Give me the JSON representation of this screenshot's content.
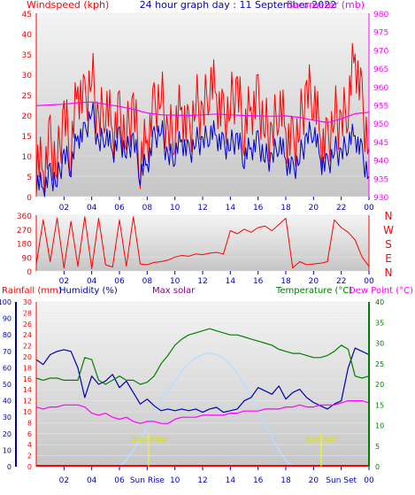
{
  "header": {
    "left": "Windspeed (kph)",
    "center": "24 hour graph day : 11 September 2022",
    "right": "Barometer (mb)"
  },
  "x_ticks": [
    "02",
    "04",
    "06",
    "08",
    "10",
    "12",
    "14",
    "16",
    "18",
    "20",
    "22",
    "00"
  ],
  "x_ticks_bottom": [
    "02",
    "04",
    "06",
    "Sun Rise",
    "10",
    "12",
    "14",
    "16",
    "18",
    "20",
    "Sun Set",
    "00"
  ],
  "compass": [
    "N",
    "W",
    "S",
    "E",
    "N"
  ],
  "bottom_header": {
    "rainfall": "Rainfall (mm)",
    "humidity": "Humidity (%)",
    "solar": "Max solar",
    "temperature": "Temperature (°C)",
    "dewpoint": "Dew Point (°C)"
  },
  "sun": {
    "rise_label": "Sun Rise",
    "set_label": "Sun Set",
    "rise_hour": 8.1,
    "set_hour": 20.55
  },
  "colors": {
    "wind": "#ff0000",
    "wind_avg": "#0000cc",
    "barometer": "#ff00ff",
    "direction": "#ff0000",
    "humidity": "#0000aa",
    "temperature": "#008000",
    "dewpoint": "#ff00ff",
    "solar": "#bbddff",
    "rain": "#ff0000",
    "sun_marker": "#ffff00"
  },
  "chart_data": [
    {
      "type": "line",
      "title": "24 hour graph day : 11 September 2022",
      "x_range_hours": [
        0,
        24
      ],
      "x_tick_labels": [
        "02",
        "04",
        "06",
        "08",
        "10",
        "12",
        "14",
        "16",
        "18",
        "20",
        "22",
        "00"
      ],
      "y_left": {
        "label": "Windspeed (kph)",
        "ticks": [
          "0",
          "5",
          "10",
          "15",
          "20",
          "25",
          "30",
          "35",
          "40",
          "45"
        ],
        "ylim": [
          0,
          45
        ]
      },
      "y_right": {
        "label": "Barometer (mb)",
        "ticks": [
          "930",
          "935",
          "940",
          "945",
          "950",
          "955",
          "960",
          "965",
          "970",
          "975",
          "980"
        ],
        "ylim": [
          930,
          980
        ]
      },
      "series": [
        {
          "name": "Windspeed (kph)",
          "axis": "left",
          "x": [
            0,
            0.5,
            1,
            1.5,
            2,
            2.5,
            3,
            3.5,
            4,
            4.5,
            5,
            5.5,
            6,
            6.5,
            7,
            7.5,
            8,
            8.5,
            9,
            9.5,
            10,
            10.5,
            11,
            11.5,
            12,
            12.5,
            13,
            13.5,
            14,
            14.5,
            15,
            15.5,
            16,
            16.5,
            17,
            17.5,
            18,
            18.5,
            19,
            19.5,
            20,
            20.5,
            21,
            21.5,
            22,
            22.5,
            23,
            23.5,
            24
          ],
          "values": [
            10,
            6,
            13,
            8,
            20,
            12,
            27,
            22,
            31,
            17,
            24,
            16,
            19,
            15,
            22,
            9,
            14,
            21,
            26,
            14,
            18,
            22,
            14,
            24,
            19,
            29,
            25,
            18,
            23,
            26,
            17,
            22,
            23,
            18,
            14,
            24,
            16,
            12,
            18,
            25,
            26,
            14,
            12,
            21,
            17,
            24,
            35,
            22,
            12
          ]
        },
        {
          "name": "Wind average",
          "axis": "left",
          "x": [
            0,
            0.5,
            1,
            1.5,
            2,
            2.5,
            3,
            3.5,
            4,
            4.5,
            5,
            5.5,
            6,
            6.5,
            7,
            7.5,
            8,
            8.5,
            9,
            9.5,
            10,
            10.5,
            11,
            11.5,
            12,
            12.5,
            13,
            13.5,
            14,
            14.5,
            15,
            15.5,
            16,
            16.5,
            17,
            17.5,
            18,
            18.5,
            19,
            19.5,
            20,
            20.5,
            21,
            21.5,
            22,
            22.5,
            23,
            23.5,
            24
          ],
          "values": [
            4,
            2,
            5,
            4,
            10,
            8,
            15,
            15,
            22,
            12,
            16,
            11,
            14,
            11,
            14,
            6,
            8,
            14,
            17,
            9,
            11,
            14,
            10,
            14,
            13,
            16,
            15,
            12,
            13,
            14,
            10,
            12,
            13,
            10,
            9,
            14,
            9,
            6,
            10,
            14,
            17,
            9,
            7,
            12,
            10,
            14,
            15,
            10,
            5
          ]
        },
        {
          "name": "Barometer (mb)",
          "axis": "right",
          "x": [
            0,
            1,
            2,
            3,
            4,
            5,
            6,
            7,
            8,
            9,
            10,
            11,
            12,
            13,
            14,
            15,
            16,
            17,
            18,
            19,
            20,
            21,
            22,
            23,
            24
          ],
          "values": [
            954.8,
            955,
            955.2,
            955.6,
            955.8,
            955.2,
            954.6,
            953.8,
            952.8,
            952.3,
            952.2,
            952.1,
            952.3,
            952.5,
            952.3,
            952.1,
            952.0,
            951.9,
            952.0,
            951.6,
            950.8,
            950.2,
            951.2,
            952.6,
            953.0
          ]
        }
      ]
    },
    {
      "type": "line",
      "y_left": {
        "ticks": [
          "0",
          "90",
          "180",
          "270",
          "360"
        ],
        "ylim": [
          0,
          360
        ]
      },
      "series": [
        {
          "name": "Wind direction",
          "x": [
            0,
            0.5,
            1,
            1.5,
            2,
            2.5,
            3,
            3.5,
            4,
            4.5,
            5,
            5.5,
            6,
            6.5,
            7,
            7.5,
            8,
            8.5,
            9,
            9.5,
            10,
            10.5,
            11,
            11.5,
            12,
            12.5,
            13,
            13.5,
            14,
            14.5,
            15,
            15.5,
            16,
            16.5,
            17,
            17.5,
            18,
            18.5,
            19,
            19.5,
            20,
            20.5,
            21,
            21.5,
            22,
            22.5,
            23,
            23.5,
            24
          ],
          "values": [
            40,
            330,
            60,
            340,
            20,
            320,
            30,
            350,
            15,
            340,
            40,
            25,
            330,
            30,
            350,
            45,
            40,
            55,
            60,
            70,
            90,
            100,
            95,
            110,
            105,
            115,
            120,
            110,
            260,
            240,
            270,
            250,
            280,
            290,
            260,
            300,
            340,
            20,
            60,
            40,
            45,
            50,
            60,
            330,
            280,
            250,
            200,
            90,
            30
          ]
        }
      ]
    },
    {
      "type": "line",
      "x_tick_labels": [
        "02",
        "04",
        "06",
        "Sun Rise",
        "10",
        "12",
        "14",
        "16",
        "18",
        "20",
        "Sun Set",
        "00"
      ],
      "y_axes": {
        "humidity": {
          "label": "Humidity (%)",
          "ticks": [
            "0",
            "10",
            "20",
            "30",
            "40",
            "50",
            "60",
            "70",
            "80",
            "90",
            "100"
          ],
          "ylim": [
            0,
            100
          ]
        },
        "rainfall": {
          "label": "Rainfall (mm)",
          "ticks": [
            "0",
            "2",
            "4",
            "6",
            "8",
            "10",
            "12",
            "14",
            "16",
            "18",
            "20",
            "22",
            "24",
            "26",
            "28",
            "30"
          ],
          "ylim": [
            0,
            30
          ]
        },
        "temperature": {
          "label": "Temperature (°C)",
          "ticks": [
            "0",
            "5",
            "10",
            "15",
            "20",
            "25",
            "30",
            "35",
            "40"
          ],
          "ylim": [
            0,
            40
          ]
        },
        "dewpoint": {
          "label": "Dew Point (°C)"
        }
      },
      "series": [
        {
          "name": "Humidity (%)",
          "axis": "humidity",
          "x": [
            0,
            0.5,
            1,
            1.5,
            2,
            2.5,
            3,
            3.5,
            4,
            4.5,
            5,
            5.5,
            6,
            6.5,
            7,
            7.5,
            8,
            8.5,
            9,
            9.5,
            10,
            10.5,
            11,
            11.5,
            12,
            12.5,
            13,
            13.5,
            14,
            14.5,
            15,
            15.5,
            16,
            16.5,
            17,
            17.5,
            18,
            18.5,
            19,
            19.5,
            20,
            20.5,
            21,
            21.5,
            22,
            22.5,
            23,
            23.5,
            24
          ],
          "values": [
            65,
            62,
            68,
            70,
            71,
            70,
            60,
            42,
            55,
            50,
            52,
            56,
            48,
            52,
            45,
            38,
            41,
            37,
            34,
            35,
            34,
            35,
            34,
            35,
            33,
            35,
            36,
            33,
            34,
            35,
            40,
            42,
            48,
            46,
            44,
            49,
            41,
            45,
            47,
            42,
            39,
            37,
            35,
            38,
            40,
            60,
            72,
            70,
            68
          ]
        },
        {
          "name": "Temperature (°C)",
          "axis": "temperature",
          "x": [
            0,
            0.5,
            1,
            1.5,
            2,
            2.5,
            3,
            3.5,
            4,
            4.5,
            5,
            5.5,
            6,
            6.5,
            7,
            7.5,
            8,
            8.5,
            9,
            9.5,
            10,
            10.5,
            11,
            11.5,
            12,
            12.5,
            13,
            13.5,
            14,
            14.5,
            15,
            15.5,
            16,
            16.5,
            17,
            17.5,
            18,
            18.5,
            19,
            19.5,
            20,
            20.5,
            21,
            21.5,
            22,
            22.5,
            23,
            23.5,
            24
          ],
          "values": [
            21.5,
            21,
            21.5,
            21.5,
            21,
            21,
            21,
            26.5,
            26,
            21,
            20,
            21,
            22,
            21,
            21,
            20,
            20.5,
            22,
            25,
            27,
            29.5,
            31,
            32,
            32.5,
            33,
            33.5,
            33,
            32.5,
            32,
            32,
            31.5,
            31,
            30.5,
            30,
            29.5,
            28.5,
            28,
            27.5,
            27.5,
            27,
            26.5,
            26.5,
            27,
            28,
            29.5,
            28.5,
            22,
            21.5,
            22
          ]
        },
        {
          "name": "Dew Point (°C)",
          "axis": "temperature",
          "x": [
            0,
            0.5,
            1,
            1.5,
            2,
            2.5,
            3,
            3.5,
            4,
            4.5,
            5,
            5.5,
            6,
            6.5,
            7,
            7.5,
            8,
            8.5,
            9,
            9.5,
            10,
            10.5,
            11,
            11.5,
            12,
            12.5,
            13,
            13.5,
            14,
            14.5,
            15,
            15.5,
            16,
            16.5,
            17,
            17.5,
            18,
            18.5,
            19,
            19.5,
            20,
            20.5,
            21,
            21.5,
            22,
            22.5,
            23,
            23.5,
            24
          ],
          "values": [
            14.5,
            14,
            14.5,
            14.5,
            15,
            15,
            15,
            14.5,
            13,
            12.5,
            13,
            12,
            11.5,
            12,
            11,
            10.5,
            11,
            11,
            10.5,
            10.5,
            11.5,
            12,
            12,
            12,
            12.5,
            12.5,
            12.5,
            12.5,
            13,
            13,
            13.5,
            13.5,
            13.5,
            14,
            14,
            14,
            14.5,
            14.5,
            15,
            14.5,
            14.5,
            15,
            15,
            15,
            15.5,
            16,
            16,
            16,
            15.5
          ]
        },
        {
          "name": "Max solar",
          "axis": "humidity",
          "x": [
            6,
            6.5,
            7,
            7.5,
            8,
            8.5,
            9,
            9.5,
            10,
            10.5,
            11,
            11.5,
            12,
            12.5,
            13,
            13.5,
            14,
            14.5,
            15,
            15.5,
            16,
            16.5,
            17,
            17.5,
            18,
            18.5
          ],
          "values": [
            0,
            4,
            10,
            16,
            24,
            32,
            39,
            46,
            52,
            58,
            63,
            66,
            68,
            69,
            68,
            66,
            62,
            57,
            50,
            43,
            35,
            26,
            18,
            10,
            4,
            0
          ]
        },
        {
          "name": "Rainfall (mm)",
          "axis": "rainfall",
          "x": [
            0,
            24
          ],
          "values": [
            0,
            0
          ]
        }
      ]
    }
  ]
}
